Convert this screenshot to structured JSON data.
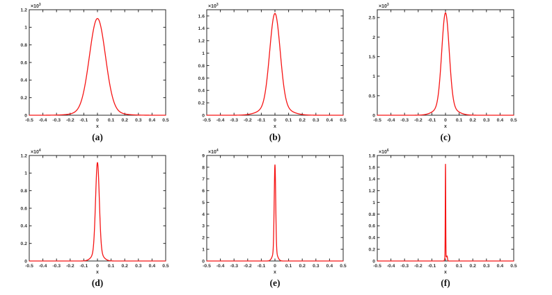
{
  "figure": {
    "background": "#ffffff",
    "axis_color": "#262626",
    "tick_label_color": "#333333",
    "line_color": "#f61414"
  },
  "chart_data": [
    {
      "id": "a",
      "type": "line",
      "caption": "(a)",
      "exponent_base": "×10",
      "exponent_power": "3",
      "xlabel": "x",
      "xlim": [
        -0.5,
        0.5
      ],
      "xticks": [
        "-0.5",
        "-0.4",
        "-0.3",
        "-0.2",
        "-0.1",
        "0",
        "0.1",
        "0.2",
        "0.3",
        "0.4",
        "0.5"
      ],
      "ylim": [
        0,
        1.2
      ],
      "yticks": [
        "0",
        "0.2",
        "0.4",
        "0.6",
        "0.8",
        "1",
        "1.2"
      ],
      "grid": false,
      "legend": null,
      "curve": {
        "shape": "peak",
        "center": 0,
        "peak": 1.1,
        "sigma": 0.058,
        "tail_frac": 0.05,
        "tail_scale": 2.0
      },
      "peak_value_absolute": 1100
    },
    {
      "id": "b",
      "type": "line",
      "caption": "(b)",
      "exponent_base": "×10",
      "exponent_power": "3",
      "xlabel": "x",
      "xlim": [
        -0.5,
        0.5
      ],
      "xticks": [
        "-0.5",
        "-0.4",
        "-0.3",
        "-0.2",
        "-0.1",
        "0",
        "0.1",
        "0.2",
        "0.3",
        "0.4",
        "0.5"
      ],
      "ylim": [
        0,
        1.7
      ],
      "yticks": [
        "0",
        "0.2",
        "0.4",
        "0.6",
        "0.8",
        "1",
        "1.2",
        "1.4",
        "1.6"
      ],
      "grid": false,
      "legend": null,
      "curve": {
        "shape": "peak",
        "center": 0,
        "peak": 1.64,
        "sigma": 0.038,
        "tail_frac": 0.1,
        "tail_scale": 2.3
      },
      "peak_value_absolute": 1640
    },
    {
      "id": "c",
      "type": "line",
      "caption": "(c)",
      "exponent_base": "×10",
      "exponent_power": "3",
      "xlabel": "x",
      "xlim": [
        -0.5,
        0.5
      ],
      "xticks": [
        "-0.5",
        "-0.4",
        "-0.3",
        "-0.2",
        "-0.1",
        "0",
        "0.1",
        "0.2",
        "0.3",
        "0.4",
        "0.5"
      ],
      "ylim": [
        0,
        2.7
      ],
      "yticks": [
        "0",
        "0.5",
        "1",
        "1.5",
        "2",
        "2.5"
      ],
      "grid": false,
      "legend": null,
      "curve": {
        "shape": "peak",
        "center": 0,
        "peak": 2.62,
        "sigma": 0.027,
        "tail_frac": 0.1,
        "tail_scale": 2.4
      },
      "peak_value_absolute": 2620
    },
    {
      "id": "d",
      "type": "line",
      "caption": "(d)",
      "exponent_base": "×10",
      "exponent_power": "4",
      "xlabel": "x",
      "xlim": [
        -0.5,
        0.5
      ],
      "xticks": [
        "-0.5",
        "-0.4",
        "-0.3",
        "-0.2",
        "-0.1",
        "0",
        "0.1",
        "0.2",
        "0.3",
        "0.4",
        "0.5"
      ],
      "ylim": [
        0,
        1.2
      ],
      "yticks": [
        "0",
        "0.2",
        "0.4",
        "0.6",
        "0.8",
        "1",
        "1.2"
      ],
      "grid": false,
      "legend": null,
      "curve": {
        "shape": "peak",
        "center": 0,
        "peak": 1.12,
        "sigma": 0.0135,
        "tail_frac": 0.1,
        "tail_scale": 2.5
      },
      "peak_value_absolute": 11200
    },
    {
      "id": "e",
      "type": "line",
      "caption": "(e)",
      "exponent_base": "×10",
      "exponent_power": "4",
      "xlabel": "x",
      "xlim": [
        -0.5,
        0.5
      ],
      "xticks": [
        "-0.5",
        "-0.4",
        "-0.3",
        "-0.2",
        "-0.1",
        "0",
        "0.1",
        "0.2",
        "0.3",
        "0.4",
        "0.5"
      ],
      "ylim": [
        0,
        9
      ],
      "yticks": [
        "0",
        "1",
        "2",
        "3",
        "4",
        "5",
        "6",
        "7",
        "8",
        "9"
      ],
      "grid": false,
      "legend": null,
      "curve": {
        "shape": "peak",
        "center": 0,
        "peak": 8.2,
        "sigma": 0.0055,
        "tail_frac": 0.1,
        "tail_scale": 3.0
      },
      "peak_value_absolute": 82000
    },
    {
      "id": "f",
      "type": "line",
      "caption": "(f)",
      "exponent_base": "×10",
      "exponent_power": "6",
      "xlabel": "x",
      "xlim": [
        -0.5,
        0.5
      ],
      "xticks": [
        "-0.5",
        "-0.4",
        "-0.3",
        "-0.2",
        "-0.1",
        "0",
        "0.1",
        "0.2",
        "0.3",
        "0.4",
        "0.5"
      ],
      "ylim": [
        0,
        1.8
      ],
      "yticks": [
        "0",
        "0.2",
        "0.4",
        "0.6",
        "0.8",
        "1",
        "1.2",
        "1.4",
        "1.6",
        "1.8"
      ],
      "grid": false,
      "legend": null,
      "curve": {
        "shape": "peak",
        "center": 0,
        "peak": 1.65,
        "sigma": 0.0016,
        "tail_frac": 0.05,
        "tail_scale": 3.0,
        "sidelobe": {
          "x": 0.011,
          "peak": 0.08,
          "sigma": 0.0035
        }
      },
      "peak_value_absolute": 1650000
    }
  ],
  "layout": {
    "cols_left": [
      6,
      261,
      506
    ],
    "rows_top": [
      2,
      212
    ]
  }
}
